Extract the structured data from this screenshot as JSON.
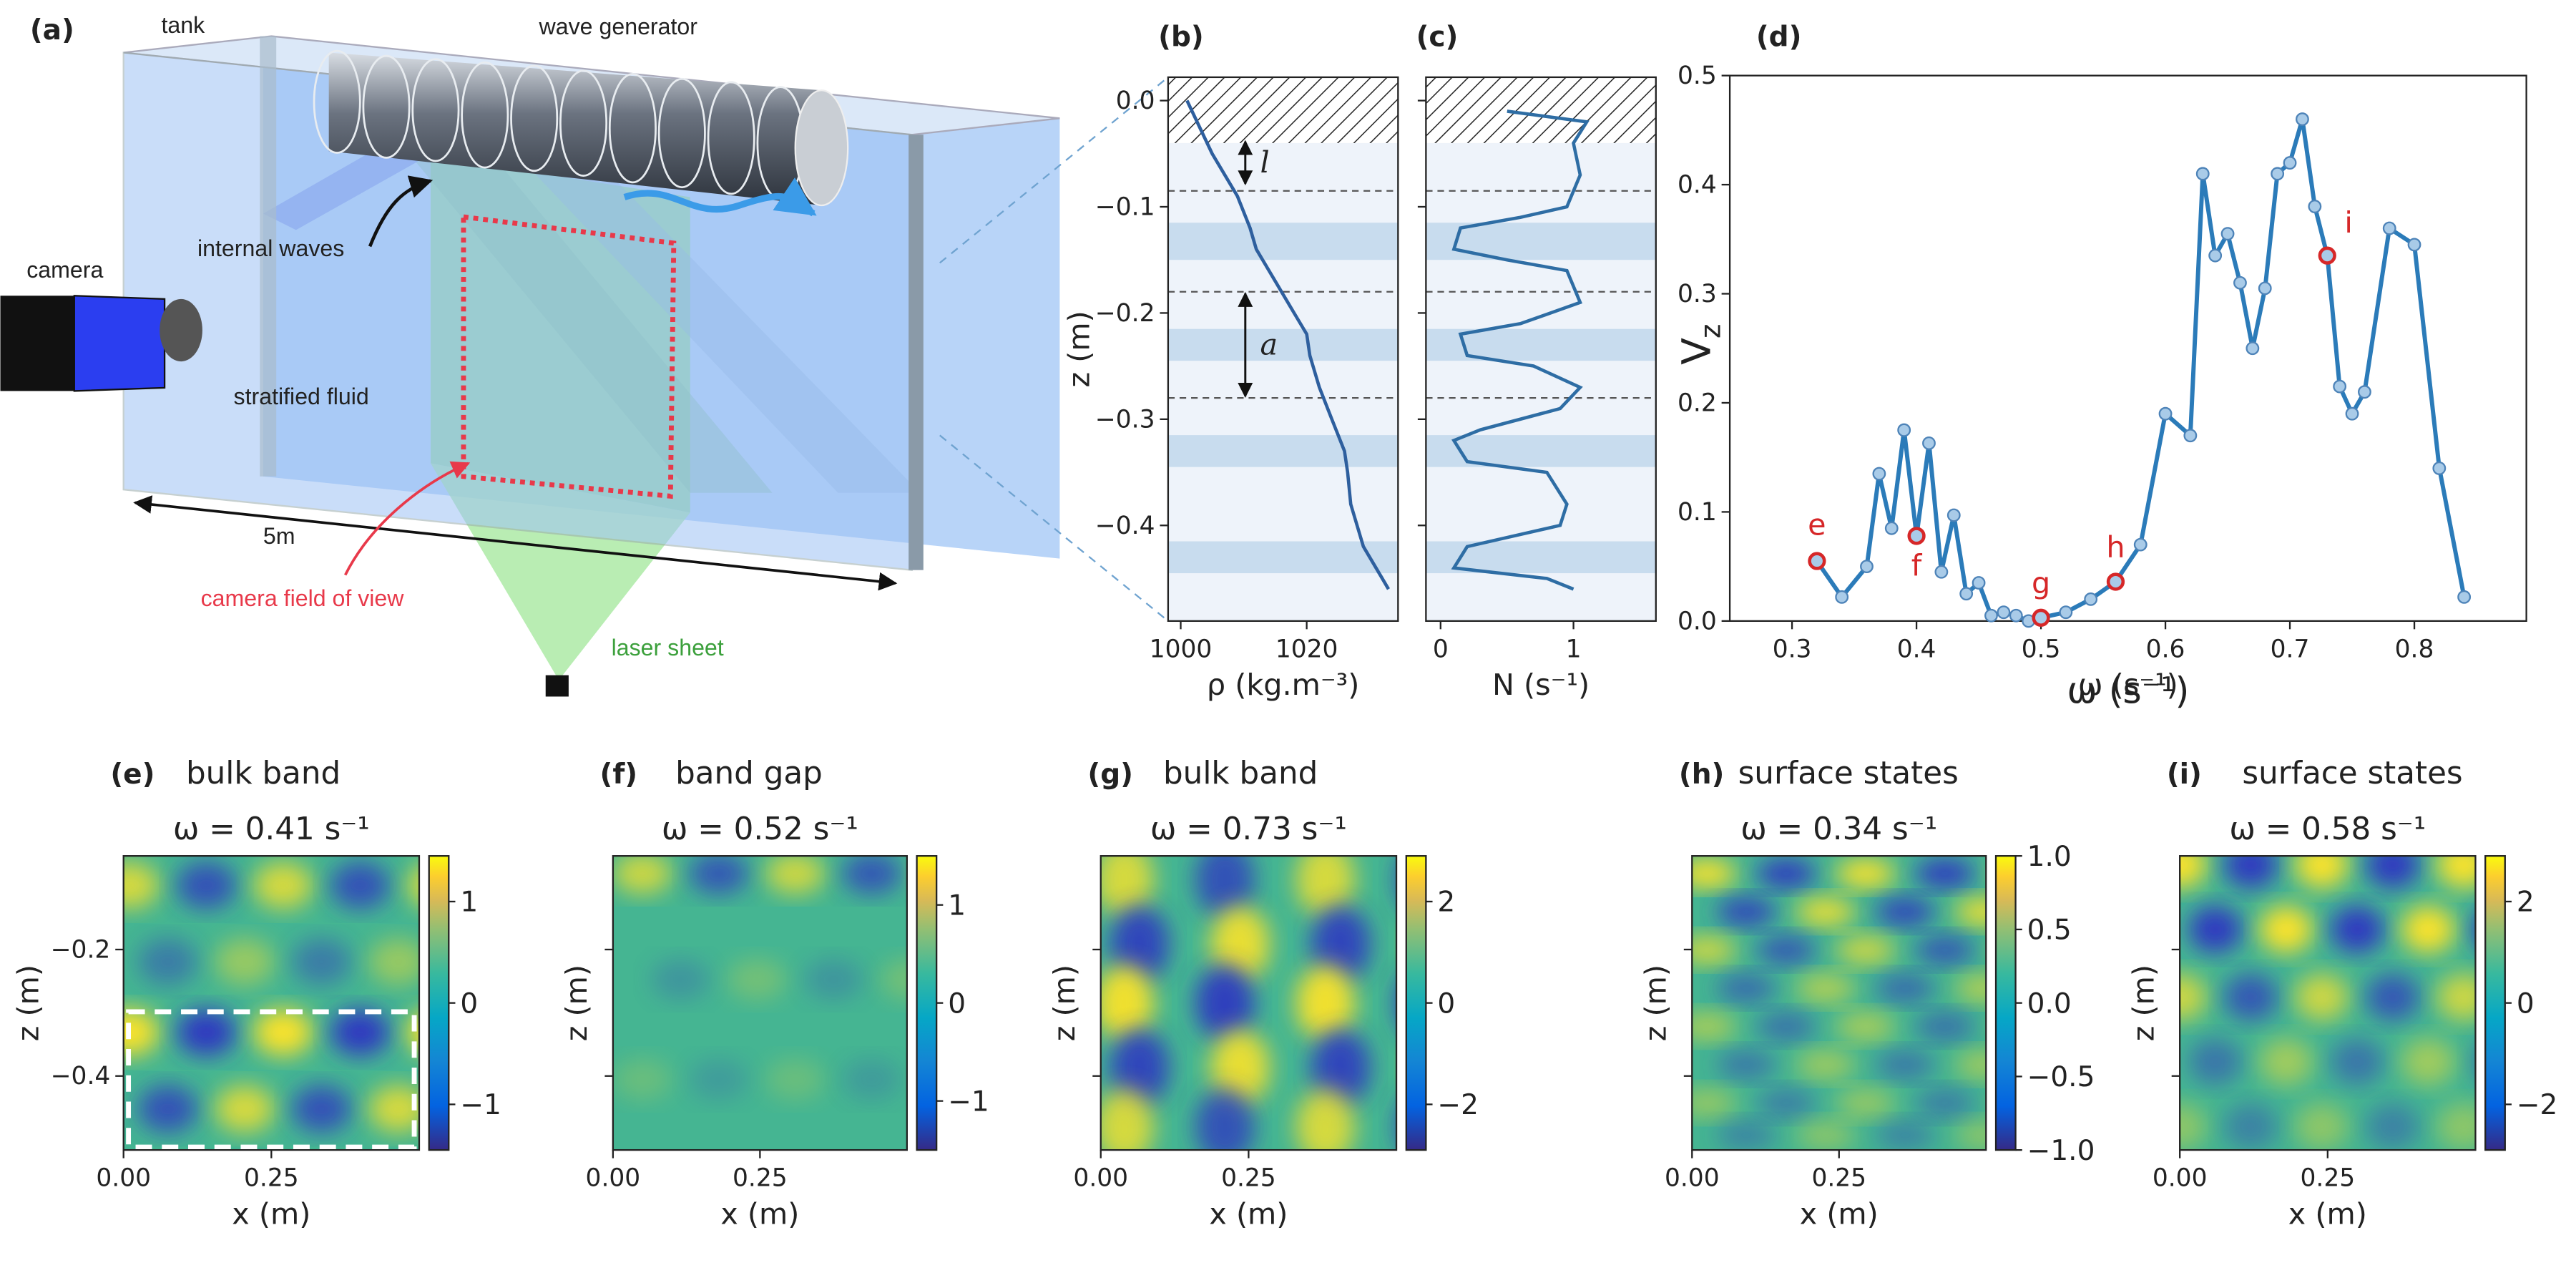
{
  "diagram": {
    "panel": "(a)",
    "tank": "tank",
    "wave_generator": "wave generator",
    "camera": "camera",
    "internal_waves": "internal waves",
    "stratified_fluid": "stratified fluid",
    "length": "5m",
    "field_of_view": "camera field of view",
    "laser_sheet": "laser sheet"
  },
  "chart_data": [
    {
      "type": "profile",
      "panel": "(b)",
      "xlabel": "ρ (kg.m⁻³)",
      "ylabel": "z (m)",
      "color": "#2e5f9e",
      "x": [
        1001,
        1005,
        1009,
        1011,
        1012,
        1015,
        1018,
        1020,
        1020.5,
        1022,
        1024,
        1026,
        1026.5,
        1027,
        1029,
        1032,
        1033
      ],
      "values": [
        0,
        -0.05,
        -0.09,
        -0.12,
        -0.14,
        -0.17,
        -0.2,
        -0.22,
        -0.24,
        -0.27,
        -0.3,
        -0.33,
        -0.35,
        -0.38,
        -0.42,
        -0.45,
        -0.46
      ],
      "xlim": [
        998,
        1034.5
      ],
      "xticks": [
        1000,
        1020
      ],
      "ylim": [
        -0.49,
        0.022
      ],
      "yticks": [
        {
          "value": 0,
          "label": "0.0"
        },
        {
          "value": -0.1,
          "label": "−0.1"
        },
        {
          "value": -0.2,
          "label": "−0.2"
        },
        {
          "value": -0.3,
          "label": "−0.3"
        },
        {
          "value": -0.4,
          "label": "−0.4"
        }
      ],
      "bands": [
        [
          -0.15,
          -0.115
        ],
        [
          -0.245,
          -0.215
        ],
        [
          -0.345,
          -0.315
        ],
        [
          -0.445,
          -0.415
        ]
      ],
      "hatch": -0.04,
      "interfaces": [
        -0.085,
        -0.18,
        -0.28
      ],
      "annotations": [
        {
          "label": "l",
          "range": [
            -0.037,
            -0.08
          ]
        },
        {
          "label": "a",
          "range": [
            -0.18,
            -0.28
          ]
        }
      ]
    },
    {
      "type": "profile",
      "panel": "(c)",
      "xlabel": "N (s⁻¹)",
      "color": "#2e6da4",
      "x": [
        0.5,
        1.1,
        1.0,
        1.05,
        0.95,
        0.6,
        0.15,
        0.1,
        0.5,
        0.95,
        1.05,
        0.6,
        0.15,
        0.2,
        0.7,
        1.05,
        0.9,
        0.3,
        0.1,
        0.2,
        0.8,
        0.95,
        0.9,
        0.2,
        0.1,
        0.8,
        1.0
      ],
      "values": [
        -0.01,
        -0.02,
        -0.04,
        -0.07,
        -0.1,
        -0.11,
        -0.12,
        -0.14,
        -0.15,
        -0.16,
        -0.19,
        -0.21,
        -0.22,
        -0.24,
        -0.25,
        -0.27,
        -0.29,
        -0.31,
        -0.32,
        -0.34,
        -0.35,
        -0.38,
        -0.4,
        -0.42,
        -0.44,
        -0.45,
        -0.46
      ],
      "xlim": [
        -0.11,
        1.62
      ],
      "xticks": [
        0,
        1
      ],
      "ylim": [
        -0.49,
        0.022
      ],
      "bands": [
        [
          -0.15,
          -0.115
        ],
        [
          -0.245,
          -0.215
        ],
        [
          -0.345,
          -0.315
        ],
        [
          -0.445,
          -0.415
        ]
      ],
      "hatch": -0.04,
      "interfaces": [
        -0.085,
        -0.18,
        -0.28
      ]
    },
    {
      "type": "line",
      "panel": "(d)",
      "xlabel": "ω (s⁻¹)",
      "ylabel": "V",
      "ylabel_sub": "z",
      "color": "#2b7bb9",
      "marker_color": "#a9cbe8",
      "highlight_color": "#d62728",
      "x": [
        0.32,
        0.34,
        0.36,
        0.37,
        0.38,
        0.39,
        0.4,
        0.41,
        0.42,
        0.43,
        0.44,
        0.45,
        0.46,
        0.47,
        0.48,
        0.49,
        0.5,
        0.52,
        0.54,
        0.56,
        0.58,
        0.6,
        0.62,
        0.63,
        0.64,
        0.65,
        0.66,
        0.67,
        0.68,
        0.69,
        0.7,
        0.71,
        0.72,
        0.73,
        0.74,
        0.75,
        0.76,
        0.78,
        0.8,
        0.82,
        0.84
      ],
      "values": [
        0.055,
        0.022,
        0.05,
        0.135,
        0.085,
        0.175,
        0.078,
        0.163,
        0.045,
        0.097,
        0.025,
        0.035,
        0.005,
        0.008,
        0.005,
        0.0,
        0.003,
        0.008,
        0.02,
        0.036,
        0.07,
        0.19,
        0.17,
        0.41,
        0.335,
        0.355,
        0.31,
        0.25,
        0.305,
        0.41,
        0.42,
        0.46,
        0.38,
        0.335,
        0.215,
        0.19,
        0.21,
        0.36,
        0.345,
        0.14,
        0.022
      ],
      "xlim": [
        0.25,
        0.89
      ],
      "xticks": [
        0.3,
        0.4,
        0.5,
        0.6,
        0.7,
        0.8
      ],
      "ylim": [
        0,
        0.5
      ],
      "yticks": [
        {
          "value": 0,
          "label": "0.0"
        },
        0.1,
        0.2,
        0.3,
        0.4,
        0.5
      ],
      "highlights": [
        {
          "label": "e",
          "x": 0.32,
          "y": 0.055
        },
        {
          "label": "f",
          "x": 0.4,
          "y": 0.078
        },
        {
          "label": "g",
          "x": 0.5,
          "y": 0.003
        },
        {
          "label": "h",
          "x": 0.56,
          "y": 0.036
        },
        {
          "label": "i",
          "x": 0.73,
          "y": 0.335
        }
      ]
    },
    {
      "type": "heatmap",
      "panel": "(e)",
      "title": "bulk band",
      "subtitle": "ω = 0.41 s⁻¹",
      "xlabel": "x (m)",
      "ylabel": "z (m)",
      "xlim": [
        0,
        0.5
      ],
      "xticks": [
        {
          "value": 0,
          "label": "0.00"
        },
        {
          "value": 0.25,
          "label": "0.25"
        }
      ],
      "ylim": [
        -0.517,
        -0.052
      ],
      "yticks": [
        {
          "value": -0.2,
          "label": "−0.2"
        },
        {
          "value": -0.4,
          "label": "−0.4"
        }
      ],
      "clim": [
        -1.45,
        1.45
      ],
      "cticks": [
        {
          "value": -1,
          "label": "−1"
        },
        0,
        1
      ]
    },
    {
      "type": "heatmap",
      "panel": "(f)",
      "title": "band gap",
      "subtitle": "ω = 0.52 s⁻¹",
      "xlabel": "x (m)",
      "ylabel": "z (m)",
      "xlim": [
        0,
        0.5
      ],
      "xticks": [
        {
          "value": 0,
          "label": "0.00"
        },
        {
          "value": 0.25,
          "label": "0.25"
        }
      ],
      "ylim": [
        -0.517,
        -0.052
      ],
      "clim": [
        -1.5,
        1.5
      ],
      "cticks": [
        {
          "value": -1,
          "label": "−1"
        },
        0,
        1
      ]
    },
    {
      "type": "heatmap",
      "panel": "(g)",
      "title": "bulk band",
      "subtitle": "ω = 0.73 s⁻¹",
      "xlabel": "x (m)",
      "ylabel": "z (m)",
      "xlim": [
        0,
        0.5
      ],
      "xticks": [
        {
          "value": 0,
          "label": "0.00"
        },
        {
          "value": 0.25,
          "label": "0.25"
        }
      ],
      "ylim": [
        -0.517,
        -0.052
      ],
      "clim": [
        -2.9,
        2.9
      ],
      "cticks": [
        {
          "value": -2,
          "label": "−2"
        },
        0,
        2
      ]
    },
    {
      "type": "heatmap",
      "panel": "(h)",
      "title": "surface states",
      "subtitle": "ω = 0.34 s⁻¹",
      "xlabel": "x (m)",
      "ylabel": "z (m)",
      "xlim": [
        0,
        0.5
      ],
      "xticks": [
        {
          "value": 0,
          "label": "0.00"
        },
        {
          "value": 0.25,
          "label": "0.25"
        }
      ],
      "ylim": [
        -0.517,
        -0.052
      ],
      "clim": [
        -1,
        1
      ],
      "cticks": [
        {
          "value": -1,
          "label": "−1.0"
        },
        {
          "value": -0.5,
          "label": "−0.5"
        },
        {
          "value": 0,
          "label": "0.0"
        },
        0.5,
        {
          "value": 1,
          "label": "1.0"
        }
      ]
    },
    {
      "type": "heatmap",
      "panel": "(i)",
      "title": "surface states",
      "subtitle": "ω = 0.58 s⁻¹",
      "xlabel": "x (m)",
      "ylabel": "z (m)",
      "xlim": [
        0,
        0.5
      ],
      "xticks": [
        {
          "value": 0,
          "label": "0.00"
        },
        {
          "value": 0.25,
          "label": "0.25"
        }
      ],
      "ylim": [
        -0.517,
        -0.052
      ],
      "clim": [
        -2.9,
        2.9
      ],
      "cticks": [
        {
          "value": -2,
          "label": "−2"
        },
        0,
        2
      ]
    }
  ]
}
